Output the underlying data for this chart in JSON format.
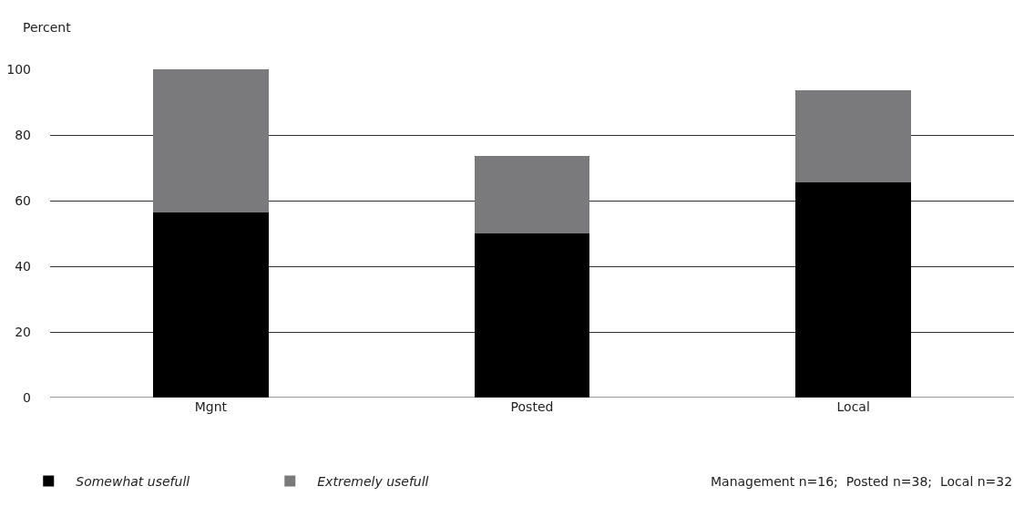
{
  "chart_data": {
    "type": "bar",
    "stacked": true,
    "ylabel": "Percent",
    "categories": [
      "Mgnt",
      "Posted",
      "Local"
    ],
    "series": [
      {
        "name": "Somewhat usefull",
        "color": "#000000",
        "values": [
          56.3,
          50,
          65.6
        ]
      },
      {
        "name": "Extremely usefull",
        "color": "#7a7a7d",
        "values": [
          43.7,
          23.7,
          28.1
        ]
      }
    ],
    "ylim": [
      0,
      100
    ],
    "yticks": [
      0,
      20,
      40,
      60,
      80,
      100
    ],
    "grid": "y",
    "legend": "bottom left",
    "annotations": [
      "Management n=16;  Posted n=38;  Local n=32"
    ]
  }
}
